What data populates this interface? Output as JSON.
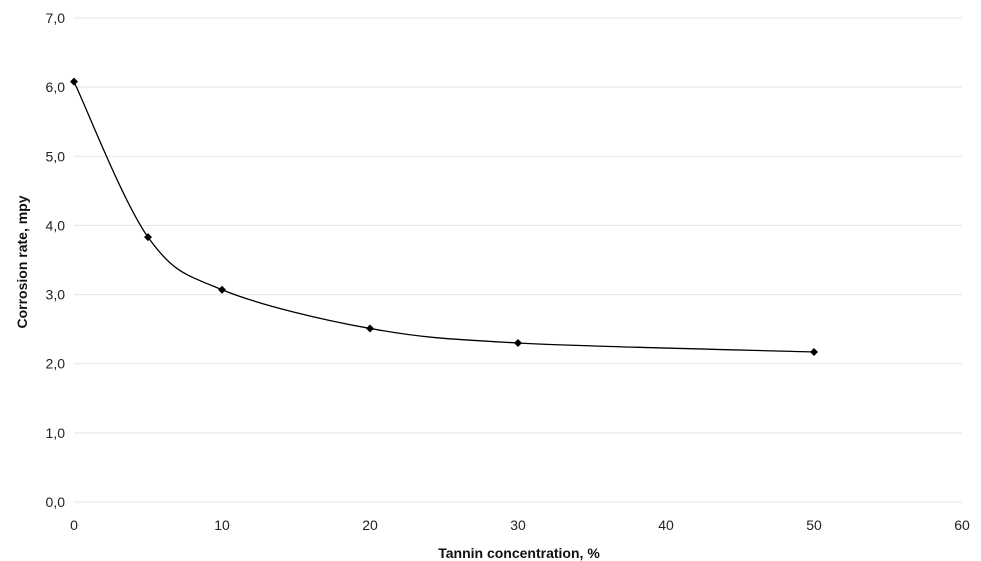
{
  "chart_data": {
    "type": "line",
    "smooth": true,
    "title": "",
    "xlabel": "Tannin concentration, %",
    "ylabel": "Corrosion rate, mpy",
    "xlim": [
      0,
      60
    ],
    "ylim": [
      0,
      7
    ],
    "x_ticks": [
      "0",
      "10",
      "20",
      "30",
      "40",
      "50",
      "60"
    ],
    "y_ticks": [
      "0,0",
      "1,0",
      "2,0",
      "3,0",
      "4,0",
      "5,0",
      "6,0",
      "7,0"
    ],
    "grid": "horizontal",
    "legend": "none",
    "marker": "diamond",
    "line_color": "#000000",
    "grid_color": "#e6e6e6",
    "series": [
      {
        "x": [
          0,
          5,
          10,
          20,
          30,
          50
        ],
        "y": [
          6.08,
          3.83,
          3.07,
          2.51,
          2.3,
          2.17
        ]
      }
    ]
  }
}
